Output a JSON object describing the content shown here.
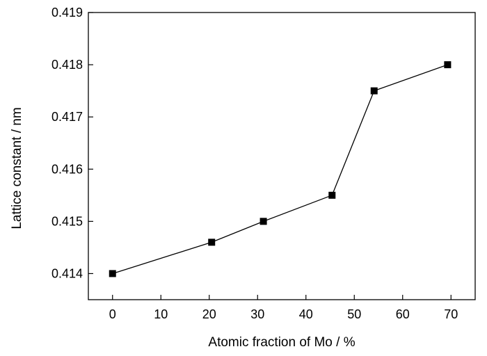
{
  "chart_data": {
    "type": "line",
    "xlabel": "Atomic fraction of Mo / %",
    "ylabel": "Lattice constant / nm",
    "xlim": [
      -5,
      75
    ],
    "ylim": [
      0.4135,
      0.419
    ],
    "xticks": [
      0,
      10,
      20,
      30,
      40,
      50,
      60,
      70
    ],
    "yticks": [
      0.414,
      0.415,
      0.416,
      0.417,
      0.418,
      0.419
    ],
    "x_tick_labels": [
      "0",
      "10",
      "20",
      "30",
      "40",
      "50",
      "60",
      "70"
    ],
    "y_tick_labels": [
      "0.414",
      "0.415",
      "0.416",
      "0.417",
      "0.418",
      "0.419"
    ],
    "grid": false,
    "marker": "square",
    "colors": {
      "line": "#000000",
      "marker": "#000000",
      "axes": "#000000"
    },
    "series": [
      {
        "x": [
          0,
          20.5,
          31.2,
          45.4,
          54.1,
          69.3
        ],
        "y": [
          0.414,
          0.4146,
          0.415,
          0.4155,
          0.4175,
          0.418
        ]
      }
    ]
  }
}
